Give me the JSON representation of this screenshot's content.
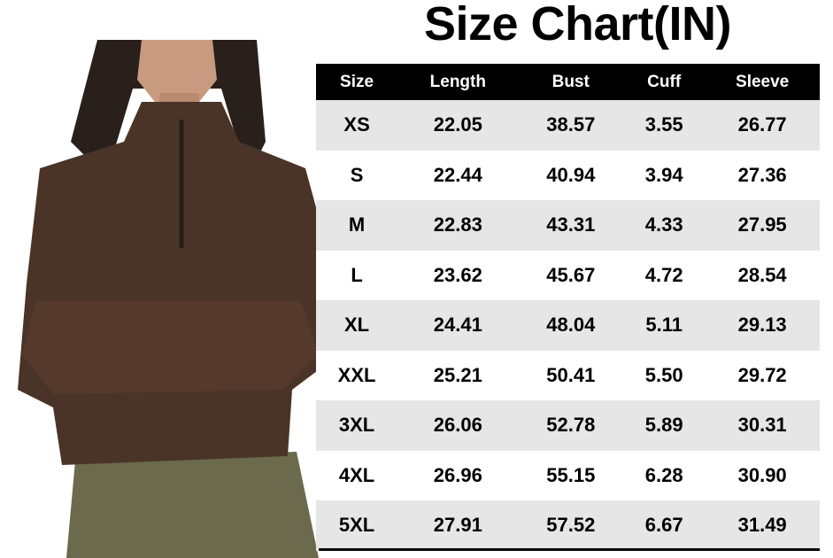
{
  "title": "Size Chart(IN)",
  "chart_data": {
    "type": "table",
    "title": "Size Chart(IN)",
    "columns": [
      "Size",
      "Length",
      "Bust",
      "Cuff",
      "Sleeve"
    ],
    "rows": [
      [
        "XS",
        "22.05",
        "38.57",
        "3.55",
        "26.77"
      ],
      [
        "S",
        "22.44",
        "40.94",
        "3.94",
        "27.36"
      ],
      [
        "M",
        "22.83",
        "43.31",
        "4.33",
        "27.95"
      ],
      [
        "L",
        "23.62",
        "45.67",
        "4.72",
        "28.54"
      ],
      [
        "XL",
        "24.41",
        "48.04",
        "5.11",
        "29.13"
      ],
      [
        "XXL",
        "25.21",
        "50.41",
        "5.50",
        "29.72"
      ],
      [
        "3XL",
        "26.06",
        "52.78",
        "5.89",
        "30.31"
      ],
      [
        "4XL",
        "26.96",
        "55.15",
        "6.28",
        "30.90"
      ],
      [
        "5XL",
        "27.91",
        "57.52",
        "6.67",
        "31.49"
      ]
    ]
  },
  "colors": {
    "header_bg": "#000000",
    "stripe": "#e6e6e6",
    "sweater": "#4a3428",
    "pants": "#6b6a4c"
  }
}
